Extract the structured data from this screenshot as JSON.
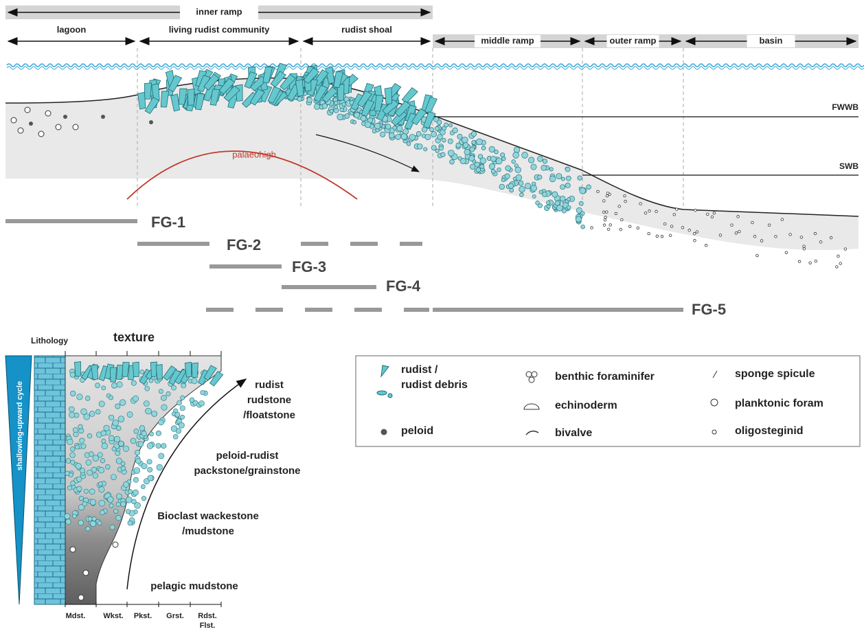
{
  "top_bar": {
    "label": "inner ramp"
  },
  "zones": [
    "lagoon",
    "living rudist community",
    "rudist shoal",
    "middle ramp",
    "outer ramp",
    "basin"
  ],
  "levels": [
    "FWWB",
    "SWB"
  ],
  "palaeohigh": "palaeohigh",
  "facies_groups": [
    "FG-1",
    "FG-2",
    "FG-3",
    "FG-4",
    "FG-5"
  ],
  "column": {
    "lithology": "Lithology",
    "texture": "texture",
    "cycle": "shallowing-upward cycle",
    "texture_classes": [
      [
        "Mdst."
      ],
      [
        "Wkst."
      ],
      [
        "Pkst."
      ],
      [
        "Grst."
      ],
      [
        "Rdst.",
        "Flst."
      ]
    ]
  },
  "facies_labels": [
    [
      "rudist",
      "rudstone",
      "/floatstone"
    ],
    [
      "peloid-rudist",
      "packstone/grainstone"
    ],
    [
      "Bioclast wackestone",
      "/mudstone"
    ],
    [
      "pelagic mudstone"
    ]
  ],
  "legend": [
    [
      "rudist /",
      "rudist debris"
    ],
    [
      "peloid"
    ],
    [
      "benthic foraminifer"
    ],
    [
      "echinoderm"
    ],
    [
      "bivalve"
    ],
    [
      "sponge spicule"
    ],
    [
      "planktonic foram"
    ],
    [
      "oligosteginid"
    ]
  ]
}
